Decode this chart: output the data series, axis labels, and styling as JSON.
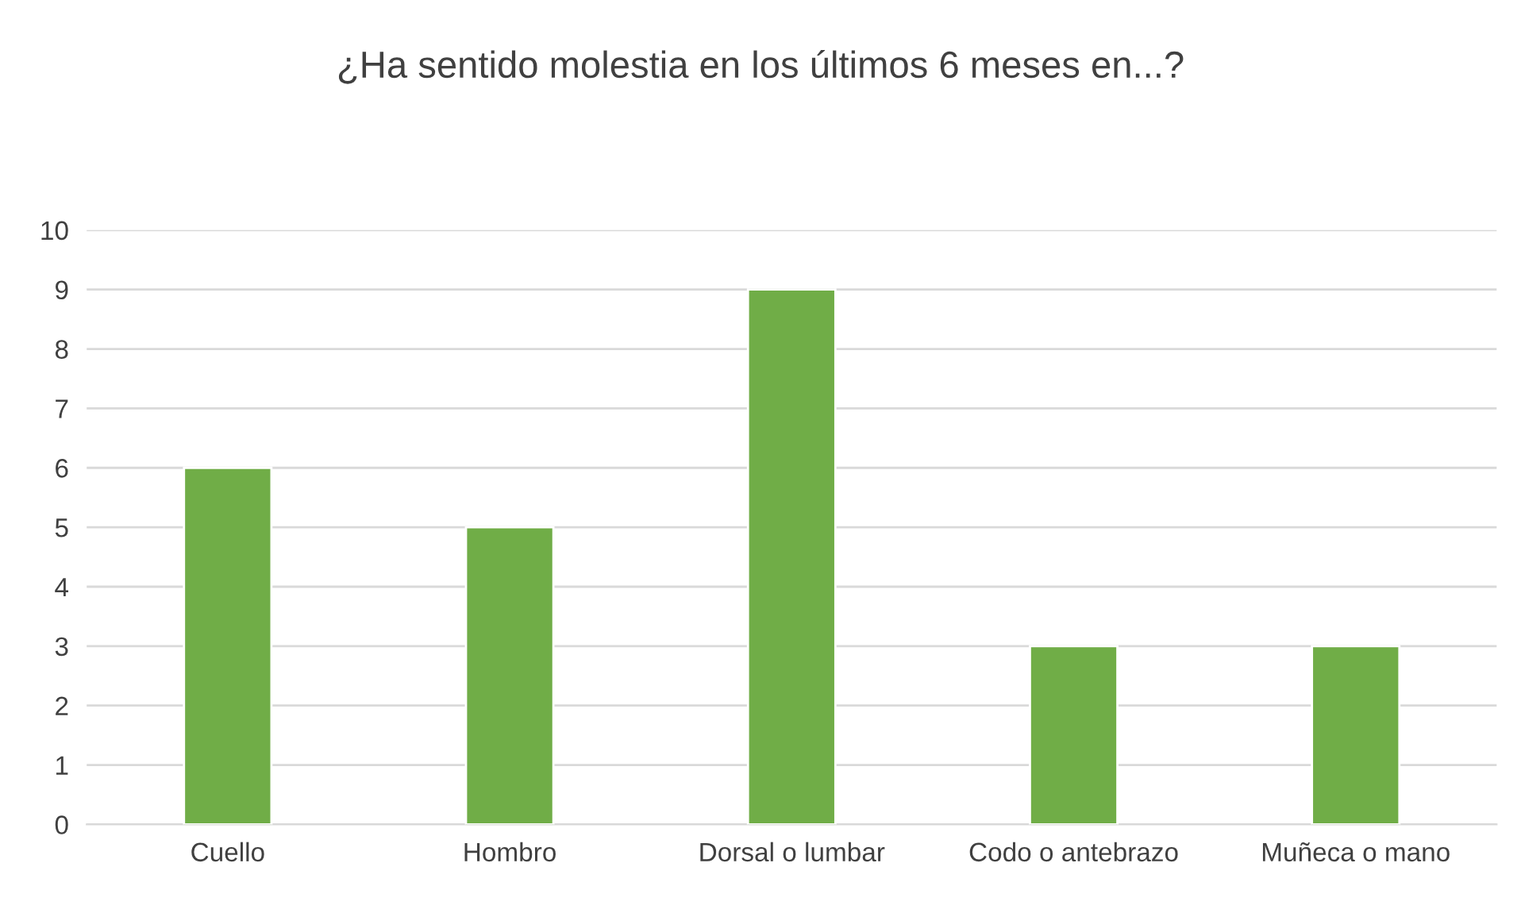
{
  "chart_data": {
    "type": "bar",
    "title": "¿Ha sentido molestia en los últimos 6 meses en...?",
    "categories": [
      "Cuello",
      "Hombro",
      "Dorsal o lumbar",
      "Codo o antebrazo",
      "Muñeca o mano"
    ],
    "values": [
      6,
      5,
      9,
      3,
      3
    ],
    "color": "#70ad47",
    "ylim": [
      0,
      10
    ],
    "yticks": [
      0,
      1,
      2,
      3,
      4,
      5,
      6,
      7,
      8,
      9,
      10
    ],
    "grid": "y",
    "legend": false
  }
}
